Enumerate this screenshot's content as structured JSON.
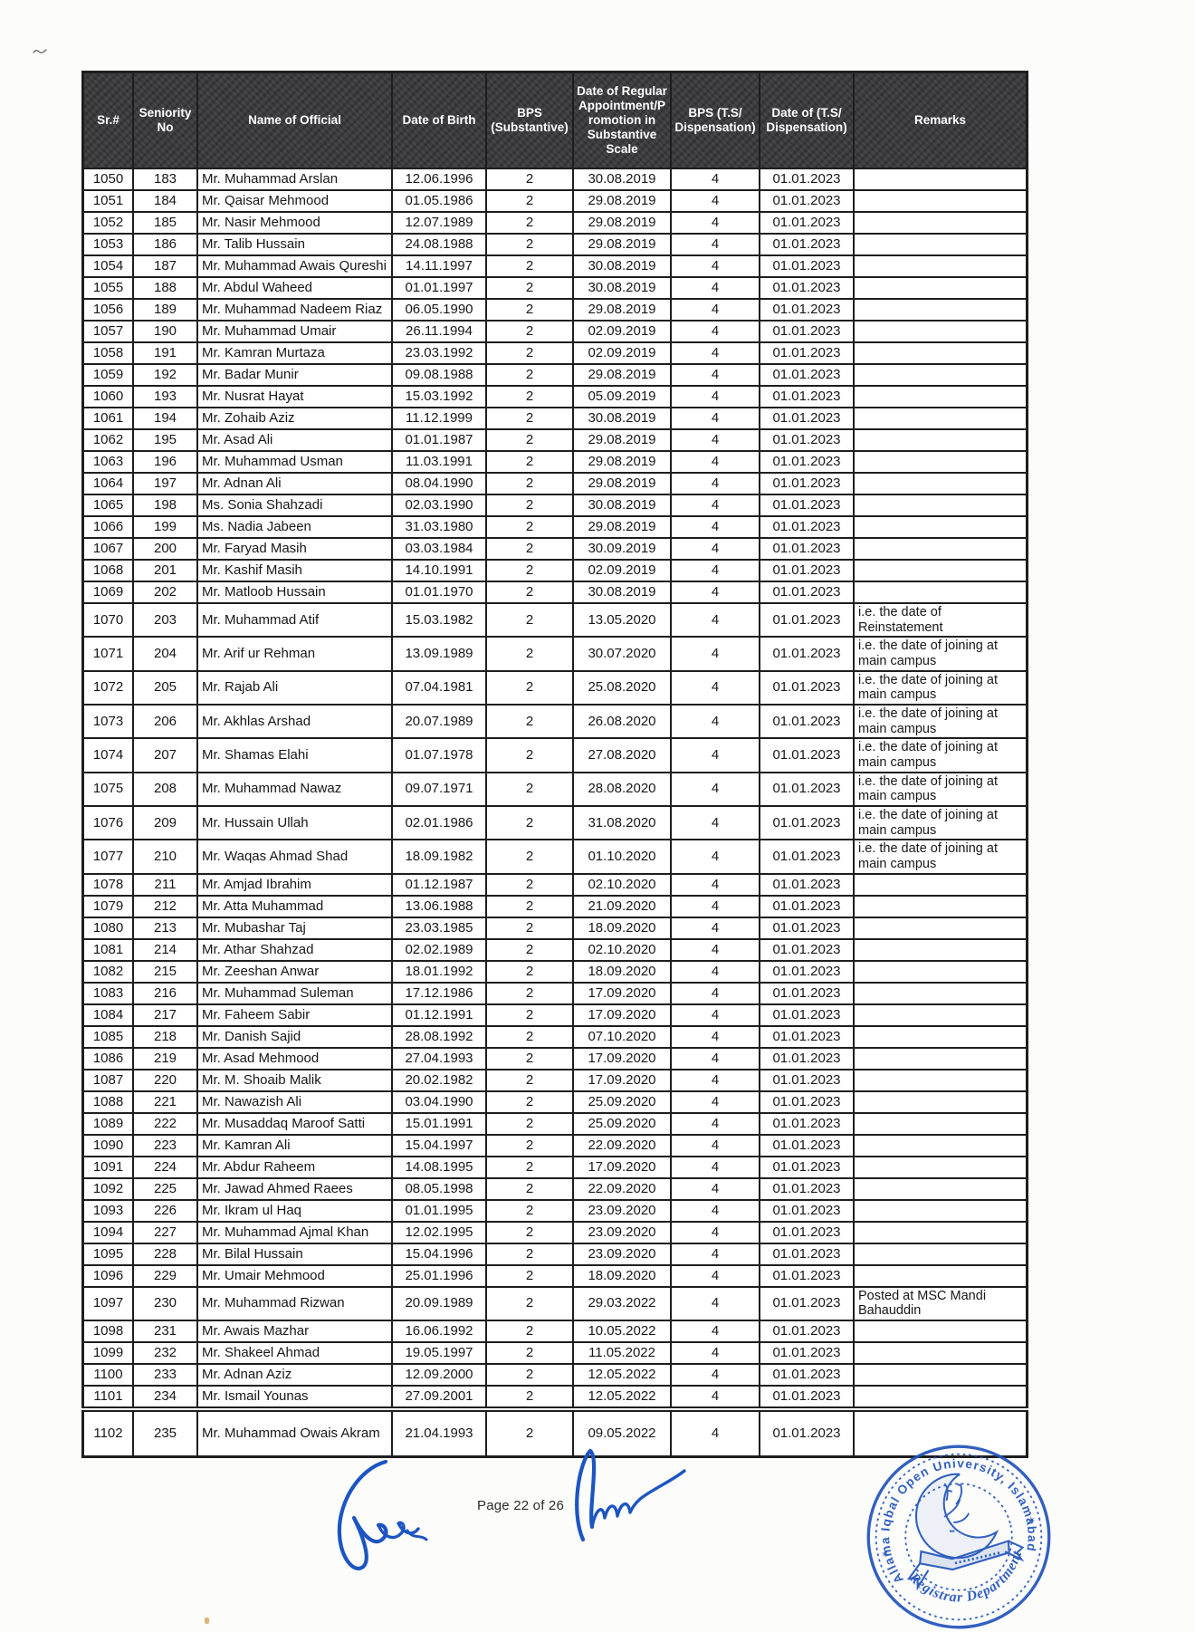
{
  "page": {
    "footer": {
      "page_label": "Page 22 of 26"
    }
  },
  "table": {
    "columns": [
      "Sr.#",
      "Seniority No",
      "Name of Official",
      "Date of Birth",
      "BPS (Substantive)",
      "Date of Regular Appointment/Promotion in Substantive Scale",
      "BPS (T.S/ Dispensation)",
      "Date of (T.S/ Dispensation)",
      "Remarks"
    ],
    "rows": [
      [
        "1050",
        "183",
        "Mr. Muhammad Arslan",
        "12.06.1996",
        "2",
        "30.08.2019",
        "4",
        "01.01.2023",
        ""
      ],
      [
        "1051",
        "184",
        "Mr. Qaisar Mehmood",
        "01.05.1986",
        "2",
        "29.08.2019",
        "4",
        "01.01.2023",
        ""
      ],
      [
        "1052",
        "185",
        "Mr. Nasir Mehmood",
        "12.07.1989",
        "2",
        "29.08.2019",
        "4",
        "01.01.2023",
        ""
      ],
      [
        "1053",
        "186",
        "Mr. Talib Hussain",
        "24.08.1988",
        "2",
        "29.08.2019",
        "4",
        "01.01.2023",
        ""
      ],
      [
        "1054",
        "187",
        "Mr. Muhammad Awais Qureshi",
        "14.11.1997",
        "2",
        "30.08.2019",
        "4",
        "01.01.2023",
        ""
      ],
      [
        "1055",
        "188",
        "Mr. Abdul Waheed",
        "01.01.1997",
        "2",
        "30.08.2019",
        "4",
        "01.01.2023",
        ""
      ],
      [
        "1056",
        "189",
        "Mr. Muhammad Nadeem Riaz",
        "06.05.1990",
        "2",
        "29.08.2019",
        "4",
        "01.01.2023",
        ""
      ],
      [
        "1057",
        "190",
        "Mr. Muhammad Umair",
        "26.11.1994",
        "2",
        "02.09.2019",
        "4",
        "01.01.2023",
        ""
      ],
      [
        "1058",
        "191",
        "Mr. Kamran Murtaza",
        "23.03.1992",
        "2",
        "02.09.2019",
        "4",
        "01.01.2023",
        ""
      ],
      [
        "1059",
        "192",
        "Mr. Badar Munir",
        "09.08.1988",
        "2",
        "29.08.2019",
        "4",
        "01.01.2023",
        ""
      ],
      [
        "1060",
        "193",
        "Mr. Nusrat Hayat",
        "15.03.1992",
        "2",
        "05.09.2019",
        "4",
        "01.01.2023",
        ""
      ],
      [
        "1061",
        "194",
        "Mr. Zohaib Aziz",
        "11.12.1999",
        "2",
        "30.08.2019",
        "4",
        "01.01.2023",
        ""
      ],
      [
        "1062",
        "195",
        "Mr. Asad Ali",
        "01.01.1987",
        "2",
        "29.08.2019",
        "4",
        "01.01.2023",
        ""
      ],
      [
        "1063",
        "196",
        "Mr. Muhammad Usman",
        "11.03.1991",
        "2",
        "29.08.2019",
        "4",
        "01.01.2023",
        ""
      ],
      [
        "1064",
        "197",
        "Mr. Adnan Ali",
        "08.04.1990",
        "2",
        "29.08.2019",
        "4",
        "01.01.2023",
        ""
      ],
      [
        "1065",
        "198",
        "Ms. Sonia Shahzadi",
        "02.03.1990",
        "2",
        "30.08.2019",
        "4",
        "01.01.2023",
        ""
      ],
      [
        "1066",
        "199",
        "Ms. Nadia Jabeen",
        "31.03.1980",
        "2",
        "29.08.2019",
        "4",
        "01.01.2023",
        ""
      ],
      [
        "1067",
        "200",
        "Mr. Faryad Masih",
        "03.03.1984",
        "2",
        "30.09.2019",
        "4",
        "01.01.2023",
        ""
      ],
      [
        "1068",
        "201",
        "Mr. Kashif Masih",
        "14.10.1991",
        "2",
        "02.09.2019",
        "4",
        "01.01.2023",
        ""
      ],
      [
        "1069",
        "202",
        "Mr. Matloob Hussain",
        "01.01.1970",
        "2",
        "30.08.2019",
        "4",
        "01.01.2023",
        ""
      ],
      [
        "1070",
        "203",
        "Mr. Muhammad Atif",
        "15.03.1982",
        "2",
        "13.05.2020",
        "4",
        "01.01.2023",
        "i.e. the date of Reinstatement"
      ],
      [
        "1071",
        "204",
        "Mr. Arif ur Rehman",
        "13.09.1989",
        "2",
        "30.07.2020",
        "4",
        "01.01.2023",
        "i.e. the date of joining at main campus"
      ],
      [
        "1072",
        "205",
        "Mr. Rajab Ali",
        "07.04.1981",
        "2",
        "25.08.2020",
        "4",
        "01.01.2023",
        "i.e. the date of joining at main campus"
      ],
      [
        "1073",
        "206",
        "Mr. Akhlas Arshad",
        "20.07.1989",
        "2",
        "26.08.2020",
        "4",
        "01.01.2023",
        "i.e. the date of joining at main campus"
      ],
      [
        "1074",
        "207",
        "Mr. Shamas Elahi",
        "01.07.1978",
        "2",
        "27.08.2020",
        "4",
        "01.01.2023",
        "i.e. the date of joining at main campus"
      ],
      [
        "1075",
        "208",
        "Mr. Muhammad Nawaz",
        "09.07.1971",
        "2",
        "28.08.2020",
        "4",
        "01.01.2023",
        "i.e. the date of joining at main campus"
      ],
      [
        "1076",
        "209",
        "Mr. Hussain Ullah",
        "02.01.1986",
        "2",
        "31.08.2020",
        "4",
        "01.01.2023",
        "i.e. the date of joining at main campus"
      ],
      [
        "1077",
        "210",
        "Mr. Waqas Ahmad Shad",
        "18.09.1982",
        "2",
        "01.10.2020",
        "4",
        "01.01.2023",
        "i.e. the date of joining at main campus"
      ],
      [
        "1078",
        "211",
        "Mr. Amjad Ibrahim",
        "01.12.1987",
        "2",
        "02.10.2020",
        "4",
        "01.01.2023",
        ""
      ],
      [
        "1079",
        "212",
        "Mr. Atta Muhammad",
        "13.06.1988",
        "2",
        "21.09.2020",
        "4",
        "01.01.2023",
        ""
      ],
      [
        "1080",
        "213",
        "Mr. Mubashar Taj",
        "23.03.1985",
        "2",
        "18.09.2020",
        "4",
        "01.01.2023",
        ""
      ],
      [
        "1081",
        "214",
        "Mr. Athar Shahzad",
        "02.02.1989",
        "2",
        "02.10.2020",
        "4",
        "01.01.2023",
        ""
      ],
      [
        "1082",
        "215",
        "Mr. Zeeshan Anwar",
        "18.01.1992",
        "2",
        "18.09.2020",
        "4",
        "01.01.2023",
        ""
      ],
      [
        "1083",
        "216",
        "Mr. Muhammad Suleman",
        "17.12.1986",
        "2",
        "17.09.2020",
        "4",
        "01.01.2023",
        ""
      ],
      [
        "1084",
        "217",
        "Mr. Faheem Sabir",
        "01.12.1991",
        "2",
        "17.09.2020",
        "4",
        "01.01.2023",
        ""
      ],
      [
        "1085",
        "218",
        "Mr. Danish Sajid",
        "28.08.1992",
        "2",
        "07.10.2020",
        "4",
        "01.01.2023",
        ""
      ],
      [
        "1086",
        "219",
        "Mr. Asad Mehmood",
        "27.04.1993",
        "2",
        "17.09.2020",
        "4",
        "01.01.2023",
        ""
      ],
      [
        "1087",
        "220",
        "Mr. M. Shoaib Malik",
        "20.02.1982",
        "2",
        "17.09.2020",
        "4",
        "01.01.2023",
        ""
      ],
      [
        "1088",
        "221",
        "Mr. Nawazish Ali",
        "03.04.1990",
        "2",
        "25.09.2020",
        "4",
        "01.01.2023",
        ""
      ],
      [
        "1089",
        "222",
        "Mr. Musaddaq Maroof Satti",
        "15.01.1991",
        "2",
        "25.09.2020",
        "4",
        "01.01.2023",
        ""
      ],
      [
        "1090",
        "223",
        "Mr. Kamran Ali",
        "15.04.1997",
        "2",
        "22.09.2020",
        "4",
        "01.01.2023",
        ""
      ],
      [
        "1091",
        "224",
        "Mr. Abdur Raheem",
        "14.08.1995",
        "2",
        "17.09.2020",
        "4",
        "01.01.2023",
        ""
      ],
      [
        "1092",
        "225",
        "Mr. Jawad Ahmed Raees",
        "08.05.1998",
        "2",
        "22.09.2020",
        "4",
        "01.01.2023",
        ""
      ],
      [
        "1093",
        "226",
        "Mr. Ikram ul Haq",
        "01.01.1995",
        "2",
        "23.09.2020",
        "4",
        "01.01.2023",
        ""
      ],
      [
        "1094",
        "227",
        "Mr. Muhammad Ajmal Khan",
        "12.02.1995",
        "2",
        "23.09.2020",
        "4",
        "01.01.2023",
        ""
      ],
      [
        "1095",
        "228",
        "Mr. Bilal Hussain",
        "15.04.1996",
        "2",
        "23.09.2020",
        "4",
        "01.01.2023",
        ""
      ],
      [
        "1096",
        "229",
        "Mr. Umair Mehmood",
        "25.01.1996",
        "2",
        "18.09.2020",
        "4",
        "01.01.2023",
        ""
      ],
      [
        "1097",
        "230",
        "Mr. Muhammad Rizwan",
        "20.09.1989",
        "2",
        "29.03.2022",
        "4",
        "01.01.2023",
        "Posted at MSC Mandi Bahauddin"
      ],
      [
        "1098",
        "231",
        "Mr. Awais Mazhar",
        "16.06.1992",
        "2",
        "10.05.2022",
        "4",
        "01.01.2023",
        ""
      ],
      [
        "1099",
        "232",
        "Mr. Shakeel Ahmad",
        "19.05.1997",
        "2",
        "11.05.2022",
        "4",
        "01.01.2023",
        ""
      ],
      [
        "1100",
        "233",
        "Mr. Adnan Aziz",
        "12.09.2000",
        "2",
        "12.05.2022",
        "4",
        "01.01.2023",
        ""
      ],
      [
        "1101",
        "234",
        "Mr. Ismail Younas",
        "27.09.2001",
        "2",
        "12.05.2022",
        "4",
        "01.01.2023",
        ""
      ],
      [
        "1102",
        "235",
        "Mr. Muhammad Owais Akram",
        "21.04.1993",
        "2",
        "09.05.2022",
        "4",
        "01.01.2023",
        ""
      ]
    ]
  },
  "stamp": {
    "arc_top": "Allama Iqbal Open University, Islamabad",
    "arc_bottom": "Registrar Department",
    "star": "✶"
  },
  "colors": {
    "ink_blue": "#2355bb",
    "header_bg": "#3d3d3f",
    "border": "#1e1e1e"
  }
}
